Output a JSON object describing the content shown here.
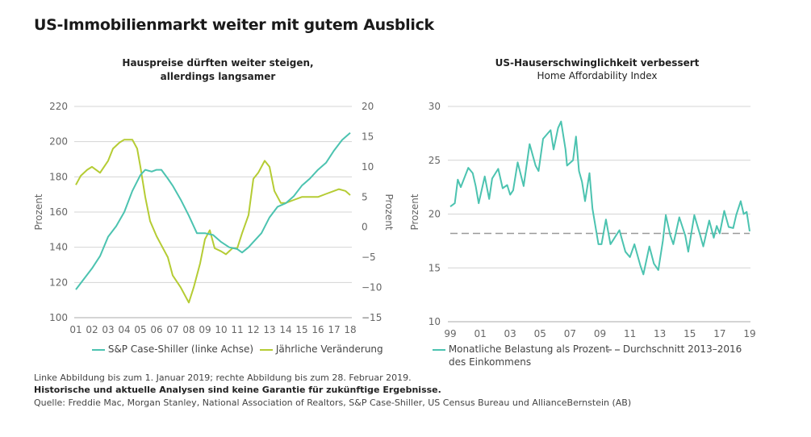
{
  "title": "US-Immobilienmarkt weiter mit gutem Ausblick",
  "colors": {
    "teal": "#4cc3b0",
    "green": "#b5cc34",
    "grid": "#d4d4d4",
    "dash": "#999999"
  },
  "chart_data": [
    {
      "type": "line",
      "title": "Hauspreise dürften weiter steigen, allerdings langsamer",
      "title_lines": [
        "Hauspreise dürften weiter steigen,",
        "allerdings langsamer"
      ],
      "ylabel": "Prozent",
      "y2label": "Prozent",
      "ylim": [
        100,
        220
      ],
      "y2lim": [
        -15,
        20
      ],
      "grid": true,
      "legend": "bottom",
      "yticks": [
        "220",
        "200",
        "180",
        "160",
        "140",
        "120",
        "100"
      ],
      "y2ticks": [
        "20",
        "15",
        "10",
        "5",
        "0",
        "−5",
        "−10",
        "−15"
      ],
      "xticks": [
        "01",
        "02",
        "03",
        "04",
        "05",
        "06",
        "07",
        "08",
        "09",
        "10",
        "11",
        "12",
        "13",
        "14",
        "15",
        "16",
        "17",
        "18"
      ],
      "series": [
        {
          "name": "S&P Case-Shiller (linke Achse)",
          "axis": "left",
          "x": [
            2001,
            2001.5,
            2002,
            2002.5,
            2003,
            2003.5,
            2004,
            2004.5,
            2005,
            2005.3,
            2005.7,
            2006,
            2006.3,
            2006.7,
            2007,
            2007.5,
            2008,
            2008.5,
            2009,
            2009.5,
            2010,
            2010.5,
            2011,
            2011.3,
            2011.7,
            2012,
            2012.5,
            2013,
            2013.5,
            2014,
            2014.5,
            2015,
            2015.5,
            2016,
            2016.5,
            2017,
            2017.5,
            2018
          ],
          "y": [
            116,
            122,
            128,
            135,
            146,
            152,
            160,
            172,
            181,
            184,
            183,
            184,
            184,
            179,
            175,
            167,
            158,
            148,
            148,
            147,
            143,
            140,
            139,
            137,
            140,
            143,
            148,
            157,
            163,
            165,
            169,
            175,
            179,
            184,
            188,
            195,
            201,
            205
          ]
        },
        {
          "name": "Jährliche Veränderung",
          "axis": "right",
          "x": [
            2001,
            2001.3,
            2001.7,
            2002,
            2002.5,
            2003,
            2003.3,
            2003.7,
            2004,
            2004.5,
            2004.8,
            2005,
            2005.3,
            2005.6,
            2006,
            2006.3,
            2006.7,
            2007,
            2007.5,
            2008,
            2008.3,
            2008.7,
            2009,
            2009.3,
            2009.6,
            2010,
            2010.3,
            2010.7,
            2011,
            2011.3,
            2011.7,
            2012,
            2012.3,
            2012.7,
            2013,
            2013.3,
            2013.7,
            2014,
            2014.5,
            2015,
            2015.5,
            2016,
            2016.5,
            2017,
            2017.3,
            2017.7,
            2018
          ],
          "y": [
            7,
            8.5,
            9.5,
            10,
            9,
            11,
            13,
            14,
            14.5,
            14.5,
            13,
            10,
            5,
            1,
            -1.5,
            -3,
            -5,
            -8,
            -10,
            -12.5,
            -10,
            -6,
            -2,
            -0.5,
            -3.5,
            -4,
            -4.5,
            -3.5,
            -3.5,
            -1,
            2,
            8,
            9,
            11,
            10,
            6,
            4,
            4,
            4.5,
            5,
            5,
            5,
            5.5,
            6,
            6.3,
            6,
            5.3
          ]
        }
      ]
    },
    {
      "type": "line",
      "title": "US-Hauserschwinglichkeit verbessert",
      "subtitle": "Home Affordability Index",
      "ylabel": "Prozent",
      "ylim": [
        10,
        30
      ],
      "grid": true,
      "legend": "bottom",
      "yticks": [
        "30",
        "25",
        "20",
        "15",
        "10"
      ],
      "xticks": [
        "99",
        "01",
        "03",
        "05",
        "07",
        "09",
        "11",
        "13",
        "15",
        "17",
        "19"
      ],
      "series": [
        {
          "name": "Monatliche Belastung als Prozent des Einkommens",
          "name_lines": [
            "Monatliche Belastung als Prozent",
            "des Einkommens"
          ],
          "x": [
            1999,
            1999.3,
            1999.5,
            1999.7,
            2000.2,
            2000.5,
            2000.7,
            2000.9,
            2001.3,
            2001.6,
            2001.8,
            2002.2,
            2002.5,
            2002.8,
            2003,
            2003.2,
            2003.5,
            2003.9,
            2004.3,
            2004.7,
            2004.9,
            2005.2,
            2005.7,
            2005.9,
            2006.2,
            2006.4,
            2006.7,
            2006.8,
            2007.2,
            2007.4,
            2007.6,
            2007.8,
            2008,
            2008.3,
            2008.5,
            2008.9,
            2009.1,
            2009.4,
            2009.7,
            2010.3,
            2010.7,
            2011,
            2011.3,
            2011.7,
            2011.9,
            2012.3,
            2012.6,
            2012.9,
            2013.2,
            2013.4,
            2013.7,
            2013.9,
            2014.3,
            2014.7,
            2014.9,
            2015.3,
            2015.7,
            2015.9,
            2016.3,
            2016.6,
            2016.8,
            2017,
            2017.3,
            2017.6,
            2017.9,
            2018.1,
            2018.4,
            2018.6,
            2018.8,
            2019
          ],
          "y": [
            20.7,
            21,
            23.2,
            22.5,
            24.3,
            23.8,
            22.6,
            21,
            23.5,
            21.4,
            23.3,
            24.2,
            22.4,
            22.7,
            21.8,
            22.2,
            24.8,
            22.6,
            26.5,
            24.5,
            24,
            27,
            27.8,
            26,
            28,
            28.6,
            26,
            24.5,
            25,
            27.2,
            24,
            23,
            21.2,
            23.8,
            20.5,
            17.2,
            17.2,
            19.5,
            17.2,
            18.5,
            16.5,
            16,
            17.2,
            15.2,
            14.4,
            17,
            15.4,
            14.8,
            17.5,
            19.9,
            18,
            17.2,
            19.7,
            18,
            16.5,
            19.9,
            18,
            17,
            19.4,
            17.8,
            18.9,
            18.2,
            20.3,
            18.8,
            18.7,
            19.9,
            21.2,
            20,
            20.2,
            18.4
          ]
        },
        {
          "name": "Durchschnitt 2013–2016",
          "x": [
            1999,
            2019
          ],
          "y": [
            18.2,
            18.2
          ],
          "dashed": true
        }
      ]
    }
  ],
  "footer": {
    "note": "Linke Abbildung bis zum 1. Januar 2019; rechte Abbildung bis zum 28. Februar 2019.",
    "disclaimer": "Historische und aktuelle Analysen sind keine Garantie für zukünftige Ergebnisse.",
    "source": "Quelle: Freddie Mac, Morgan Stanley, National Association of Realtors, S&P Case-Shiller, US Census Bureau und AllianceBernstein (AB)"
  }
}
